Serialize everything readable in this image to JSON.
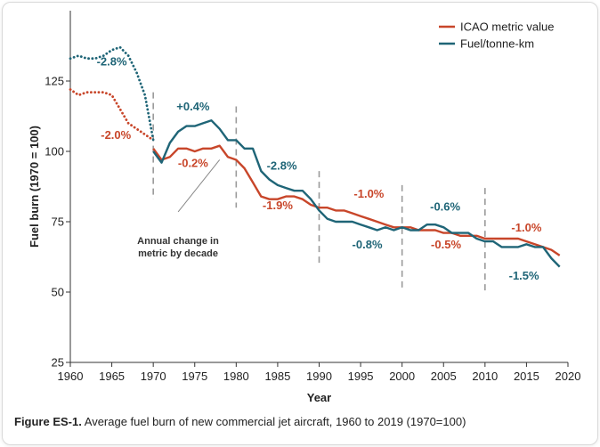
{
  "chart_data": {
    "type": "line",
    "xlabel": "Year",
    "ylabel": "Fuel burn (1970 = 100)",
    "xlim": [
      1960,
      2020
    ],
    "ylim": [
      25,
      150
    ],
    "x_ticks": [
      "1960",
      "1965",
      "1970",
      "1975",
      "1980",
      "1985",
      "1990",
      "1995",
      "2000",
      "2005",
      "2010",
      "2015",
      "2020"
    ],
    "y_ticks": [
      "25",
      "50",
      "75",
      "100",
      "125"
    ],
    "legend_position": "top-right",
    "grid": false,
    "series": [
      {
        "name": "ICAO metric value",
        "color": "#c8462a",
        "dotted": {
          "x": [
            1960,
            1961,
            1962,
            1963,
            1964,
            1965,
            1966,
            1967,
            1968,
            1969,
            1970
          ],
          "y": [
            122,
            120,
            121,
            121,
            121,
            120,
            115,
            110,
            108,
            106,
            104
          ]
        },
        "solid": {
          "x": [
            1970,
            1971,
            1972,
            1973,
            1974,
            1975,
            1976,
            1977,
            1978,
            1979,
            1980,
            1981,
            1982,
            1983,
            1984,
            1985,
            1986,
            1987,
            1988,
            1989,
            1990,
            1991,
            1992,
            1993,
            1994,
            1995,
            1996,
            1997,
            1998,
            1999,
            2000,
            2001,
            2002,
            2003,
            2004,
            2005,
            2006,
            2007,
            2008,
            2009,
            2010,
            2011,
            2012,
            2013,
            2014,
            2015,
            2016,
            2017,
            2018,
            2019
          ],
          "y": [
            101,
            97,
            98,
            101,
            101,
            100,
            101,
            101,
            102,
            98,
            97,
            94,
            89,
            84,
            83,
            83,
            84,
            84,
            83,
            81,
            80,
            80,
            79,
            79,
            78,
            77,
            76,
            75,
            74,
            73,
            73,
            73,
            72,
            72,
            72,
            71,
            71,
            70,
            70,
            70,
            69,
            69,
            69,
            69,
            69,
            68,
            67,
            66,
            65,
            63
          ]
        }
      },
      {
        "name": "Fuel/tonne-km",
        "color": "#1f6577",
        "dotted": {
          "x": [
            1960,
            1961,
            1962,
            1963,
            1964,
            1965,
            1966,
            1967,
            1968,
            1969,
            1970
          ],
          "y": [
            133,
            134,
            133,
            133,
            134,
            136,
            137,
            134,
            128,
            120,
            104
          ]
        },
        "solid": {
          "x": [
            1970,
            1971,
            1972,
            1973,
            1974,
            1975,
            1976,
            1977,
            1978,
            1979,
            1980,
            1981,
            1982,
            1983,
            1984,
            1985,
            1986,
            1987,
            1988,
            1989,
            1990,
            1991,
            1992,
            1993,
            1994,
            1995,
            1996,
            1997,
            1998,
            1999,
            2000,
            2001,
            2002,
            2003,
            2004,
            2005,
            2006,
            2007,
            2008,
            2009,
            2010,
            2011,
            2012,
            2013,
            2014,
            2015,
            2016,
            2017,
            2018,
            2019
          ],
          "y": [
            100,
            96,
            103,
            107,
            109,
            109,
            110,
            111,
            108,
            104,
            104,
            101,
            101,
            93,
            90,
            88,
            87,
            86,
            86,
            83,
            79,
            76,
            75,
            75,
            75,
            74,
            73,
            72,
            73,
            72,
            73,
            72,
            72,
            74,
            74,
            73,
            71,
            71,
            71,
            69,
            68,
            68,
            66,
            66,
            66,
            67,
            66,
            66,
            62,
            59
          ]
        }
      }
    ],
    "decade_dividers": [
      1970,
      1980,
      1990,
      2000,
      2010
    ],
    "annotations": [
      {
        "text": "-2.8%",
        "x": 1965,
        "y": 130.5,
        "series": "Fuel/tonne-km"
      },
      {
        "text": "-2.0%",
        "x": 1965.5,
        "y": 104.5,
        "series": "ICAO metric value"
      },
      {
        "text": "+0.4%",
        "x": 1974.8,
        "y": 114.5,
        "series": "Fuel/tonne-km"
      },
      {
        "text": "-0.2%",
        "x": 1974.8,
        "y": 94.5,
        "series": "ICAO metric value"
      },
      {
        "text": "-2.8%",
        "x": 1985.5,
        "y": 93.5,
        "series": "Fuel/tonne-km"
      },
      {
        "text": "-1.9%",
        "x": 1985,
        "y": 79.5,
        "series": "ICAO metric value"
      },
      {
        "text": "-1.0%",
        "x": 1996,
        "y": 83.5,
        "series": "ICAO metric value"
      },
      {
        "text": "-0.8%",
        "x": 1995.8,
        "y": 65.5,
        "series": "Fuel/tonne-km"
      },
      {
        "text": "-0.6%",
        "x": 2005.2,
        "y": 79,
        "series": "Fuel/tonne-km"
      },
      {
        "text": "-0.5%",
        "x": 2005.3,
        "y": 65.5,
        "series": "ICAO metric value"
      },
      {
        "text": "-1.0%",
        "x": 2015,
        "y": 71.5,
        "series": "ICAO metric value"
      },
      {
        "text": "-1.5%",
        "x": 2014.7,
        "y": 54.5,
        "series": "Fuel/tonne-km"
      }
    ],
    "note_lines": [
      "Annual change in",
      "metric by decade"
    ],
    "note_pointer": {
      "from": [
        1973,
        78.5
      ],
      "to": [
        1978,
        97
      ]
    }
  },
  "caption": {
    "label": "Figure ES-1.",
    "text": " Average fuel burn of new commercial jet aircraft, 1960 to 2019 (1970=100)"
  }
}
